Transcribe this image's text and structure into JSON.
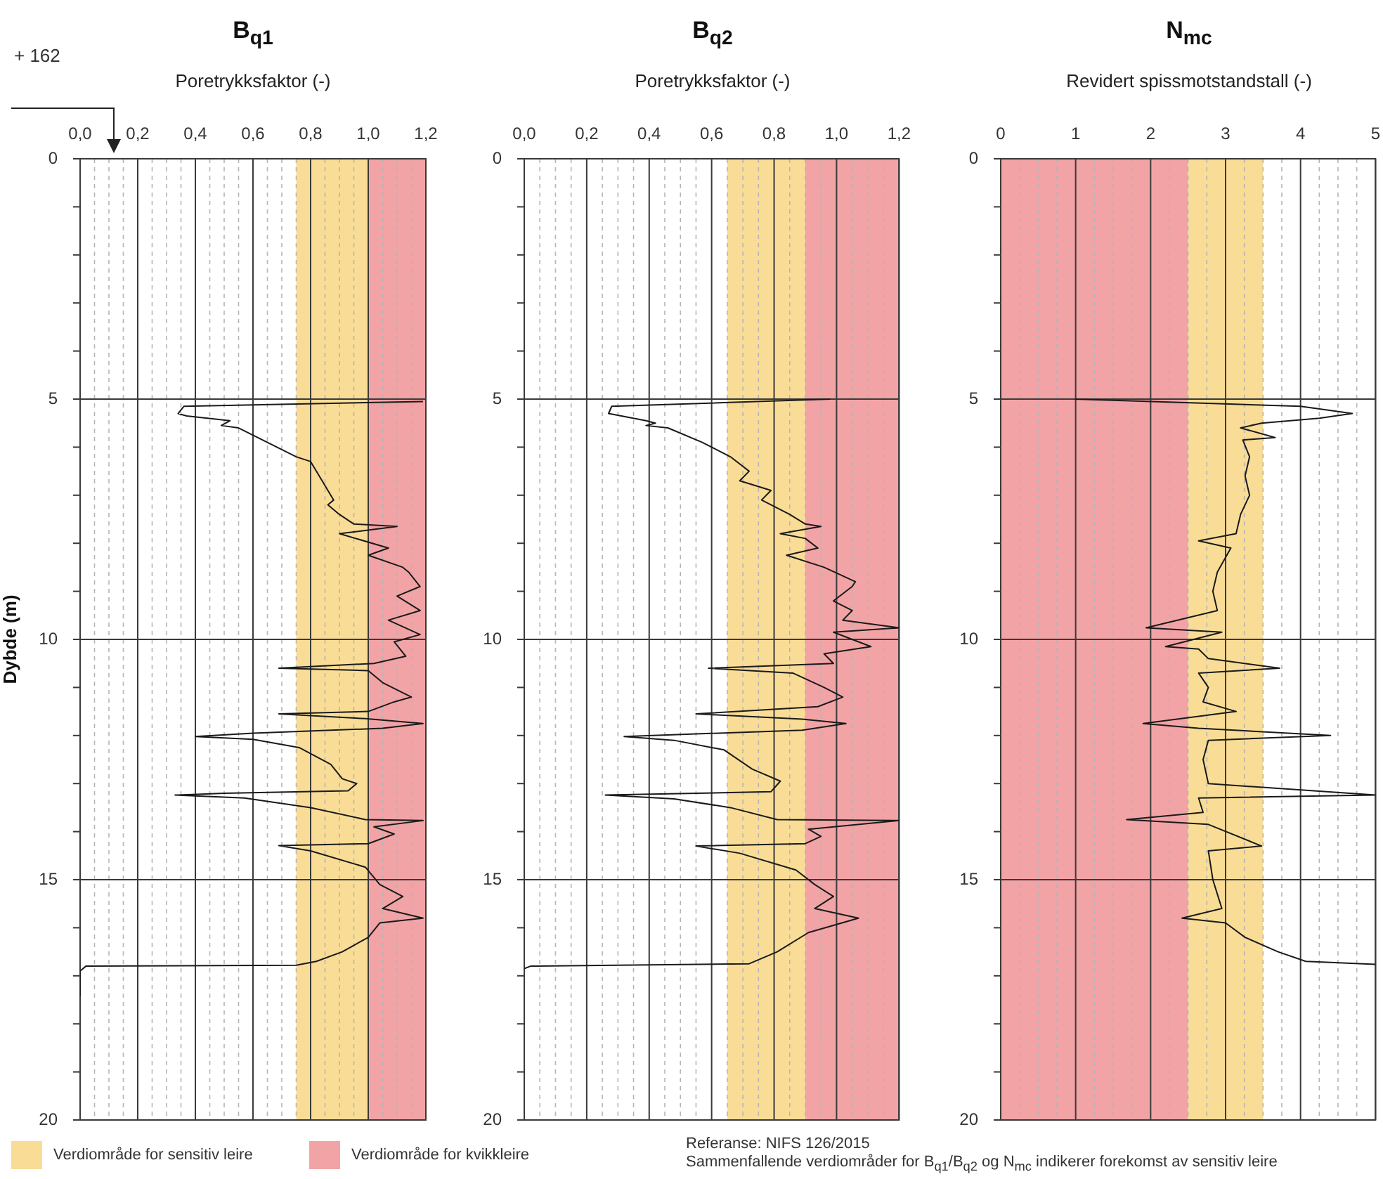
{
  "chart_data": [
    {
      "type": "line",
      "title": "B$_{q1}$",
      "xlabel": "Poretrykksfaktor (-)",
      "ylabel": "Dybde (m)",
      "grid": true,
      "marker": "none",
      "xlim": [
        0,
        1.2
      ],
      "ylim": [
        20,
        0
      ],
      "xticks": [
        {
          "value": 0,
          "label": "0,0"
        },
        {
          "value": 0.05,
          "label": null
        },
        {
          "value": 0.1,
          "label": null
        },
        {
          "value": 0.15,
          "label": null
        },
        {
          "value": 0.2,
          "label": "0,2"
        },
        {
          "value": 0.25,
          "label": null
        },
        {
          "value": 0.3,
          "label": null
        },
        {
          "value": 0.35,
          "label": null
        },
        {
          "value": 0.4,
          "label": "0,4"
        },
        {
          "value": 0.45,
          "label": null
        },
        {
          "value": 0.5,
          "label": null
        },
        {
          "value": 0.55,
          "label": null
        },
        {
          "value": 0.6,
          "label": "0,6"
        },
        {
          "value": 0.65,
          "label": null
        },
        {
          "value": 0.7,
          "label": null
        },
        {
          "value": 0.75,
          "label": null
        },
        {
          "value": 0.8,
          "label": "0,8"
        },
        {
          "value": 0.85,
          "label": null
        },
        {
          "value": 0.9,
          "label": null
        },
        {
          "value": 0.95,
          "label": null
        },
        {
          "value": 1,
          "label": "1,0"
        },
        {
          "value": 1.05,
          "label": null
        },
        {
          "value": 1.1,
          "label": null
        },
        {
          "value": 1.15,
          "label": null
        },
        {
          "value": 1.2,
          "label": "1,2"
        }
      ],
      "yticks": [
        0,
        {
          "value": 1,
          "label": null
        },
        {
          "value": 2,
          "label": null
        },
        {
          "value": 3,
          "label": null
        },
        {
          "value": 4,
          "label": null
        },
        5,
        {
          "value": 6,
          "label": null
        },
        {
          "value": 7,
          "label": null
        },
        {
          "value": 8,
          "label": null
        },
        {
          "value": 9,
          "label": null
        },
        10,
        {
          "value": 11,
          "label": null
        },
        {
          "value": 12,
          "label": null
        },
        {
          "value": 13,
          "label": null
        },
        {
          "value": 14,
          "label": null
        },
        15,
        {
          "value": 16,
          "label": null
        },
        {
          "value": 17,
          "label": null
        },
        {
          "value": 18,
          "label": null
        },
        {
          "value": 19,
          "label": null
        },
        20
      ],
      "bands": [
        {
          "axis": "x",
          "from": 0.75,
          "to": 1.0,
          "label": "Verdiområde for sensitiv leire",
          "color": "#f9dd96"
        },
        {
          "axis": "x",
          "from": 1.0,
          "to": 1.2,
          "label": "Verdiområde for kvikkleire",
          "color": "#f2a3a6"
        }
      ],
      "annotations": [
        "+ 162"
      ],
      "legend": "bottom left",
      "series": [
        {
          "color": "#1a1a1a",
          "x": [
            1.19,
            0.36,
            0.34,
            0.37,
            0.52,
            0.49,
            0.55,
            0.75,
            0.8,
            0.84,
            0.88,
            0.86,
            0.9,
            0.95,
            1.1,
            0.9,
            1.07,
            1.0,
            1.12,
            1.14,
            1.18,
            1.1,
            1.18,
            1.07,
            1.18,
            1.09,
            1.13,
            1.02,
            0.69,
            1.0,
            1.05,
            1.15,
            1.09,
            1.0,
            0.69,
            0.99,
            1.19,
            1.05,
            0.6,
            0.4,
            0.6,
            0.76,
            0.87,
            0.91,
            0.96,
            0.93,
            0.5,
            0.33,
            0.57,
            0.8,
            0.99,
            1.19,
            1.02,
            1.09,
            1.0,
            0.69,
            0.8,
            0.99,
            1.04,
            1.12,
            1.05,
            1.19,
            1.04,
            1.0,
            0.91,
            0.82,
            0.75,
            0.02,
            0.0,
            0.0
          ],
          "values": [
            5.05,
            5.15,
            5.3,
            5.35,
            5.45,
            5.55,
            5.6,
            6.2,
            6.3,
            6.7,
            7.1,
            7.2,
            7.4,
            7.6,
            7.65,
            7.8,
            8.1,
            8.25,
            8.5,
            8.6,
            8.9,
            9.1,
            9.4,
            9.6,
            9.9,
            10.05,
            10.35,
            10.5,
            10.6,
            10.65,
            10.9,
            11.2,
            11.3,
            11.5,
            11.55,
            11.65,
            11.75,
            11.85,
            11.95,
            12.02,
            12.08,
            12.25,
            12.6,
            12.9,
            13.0,
            13.15,
            13.2,
            13.24,
            13.3,
            13.5,
            13.75,
            13.77,
            13.9,
            14.05,
            14.25,
            14.29,
            14.4,
            14.74,
            15.1,
            15.35,
            15.6,
            15.8,
            15.9,
            16.2,
            16.5,
            16.7,
            16.78,
            16.8,
            16.9,
            17.4
          ]
        }
      ]
    },
    {
      "type": "line",
      "title": "B$_{q2}$",
      "xlabel": "Poretrykksfaktor (-)",
      "grid": true,
      "marker": "none",
      "xlim": [
        0,
        1.2
      ],
      "ylim": [
        20,
        0
      ],
      "xticks": [
        {
          "value": 0,
          "label": "0,0"
        },
        {
          "value": 0.05,
          "label": null
        },
        {
          "value": 0.1,
          "label": null
        },
        {
          "value": 0.15,
          "label": null
        },
        {
          "value": 0.2,
          "label": "0,2"
        },
        {
          "value": 0.25,
          "label": null
        },
        {
          "value": 0.3,
          "label": null
        },
        {
          "value": 0.35,
          "label": null
        },
        {
          "value": 0.4,
          "label": "0,4"
        },
        {
          "value": 0.45,
          "label": null
        },
        {
          "value": 0.5,
          "label": null
        },
        {
          "value": 0.55,
          "label": null
        },
        {
          "value": 0.6,
          "label": "0,6"
        },
        {
          "value": 0.65,
          "label": null
        },
        {
          "value": 0.7,
          "label": null
        },
        {
          "value": 0.75,
          "label": null
        },
        {
          "value": 0.8,
          "label": "0,8"
        },
        {
          "value": 0.85,
          "label": null
        },
        {
          "value": 0.9,
          "label": null
        },
        {
          "value": 0.95,
          "label": null
        },
        {
          "value": 1,
          "label": "1,0"
        },
        {
          "value": 1.05,
          "label": null
        },
        {
          "value": 1.1,
          "label": null
        },
        {
          "value": 1.15,
          "label": null
        },
        {
          "value": 1.2,
          "label": "1,2"
        }
      ],
      "yticks": [
        0,
        {
          "value": 1,
          "label": null
        },
        {
          "value": 2,
          "label": null
        },
        {
          "value": 3,
          "label": null
        },
        {
          "value": 4,
          "label": null
        },
        5,
        {
          "value": 6,
          "label": null
        },
        {
          "value": 7,
          "label": null
        },
        {
          "value": 8,
          "label": null
        },
        {
          "value": 9,
          "label": null
        },
        10,
        {
          "value": 11,
          "label": null
        },
        {
          "value": 12,
          "label": null
        },
        {
          "value": 13,
          "label": null
        },
        {
          "value": 14,
          "label": null
        },
        15,
        {
          "value": 16,
          "label": null
        },
        {
          "value": 17,
          "label": null
        },
        {
          "value": 18,
          "label": null
        },
        {
          "value": 19,
          "label": null
        },
        20
      ],
      "bands": [
        {
          "axis": "x",
          "from": 0.65,
          "to": 0.9,
          "color": "#f9dd96"
        },
        {
          "axis": "x",
          "from": 0.9,
          "to": 1.2,
          "color": "#f2a3a6"
        }
      ],
      "series": [
        {
          "color": "#1a1a1a",
          "x": [
            0.98,
            0.28,
            0.27,
            0.39,
            0.42,
            0.39,
            0.46,
            0.57,
            0.66,
            0.72,
            0.69,
            0.79,
            0.76,
            0.85,
            0.9,
            0.95,
            0.82,
            0.9,
            0.94,
            0.84,
            0.96,
            1.06,
            1.05,
            0.99,
            1.05,
            1.02,
            1.2,
            0.99,
            1.11,
            0.96,
            0.99,
            0.59,
            0.86,
            0.96,
            1.02,
            0.94,
            0.55,
            0.89,
            1.03,
            0.89,
            0.32,
            0.48,
            0.64,
            0.73,
            0.82,
            0.79,
            0.26,
            0.48,
            0.66,
            0.81,
            1.2,
            0.91,
            0.95,
            0.9,
            0.55,
            0.69,
            0.87,
            0.93,
            0.99,
            0.93,
            1.07,
            0.91,
            0.81,
            0.72,
            0.02,
            0.0
          ],
          "values": [
            5.0,
            5.15,
            5.3,
            5.45,
            5.5,
            5.55,
            5.6,
            5.9,
            6.2,
            6.5,
            6.7,
            6.9,
            7.1,
            7.4,
            7.6,
            7.65,
            7.8,
            7.9,
            8.1,
            8.25,
            8.5,
            8.8,
            8.9,
            9.2,
            9.4,
            9.6,
            9.76,
            9.85,
            10.15,
            10.3,
            10.5,
            10.6,
            10.7,
            11.0,
            11.2,
            11.4,
            11.55,
            11.66,
            11.75,
            11.89,
            12.02,
            12.1,
            12.3,
            12.7,
            12.95,
            13.17,
            13.24,
            13.32,
            13.5,
            13.75,
            13.77,
            13.95,
            14.1,
            14.25,
            14.3,
            14.45,
            14.8,
            15.1,
            15.35,
            15.6,
            15.8,
            16.1,
            16.5,
            16.75,
            16.8,
            16.85
          ]
        }
      ]
    },
    {
      "type": "line",
      "title": "N$_{mc}$",
      "xlabel": "Revidert spissmotstandstall (-)",
      "grid": true,
      "marker": "none",
      "xlim": [
        0,
        5
      ],
      "ylim": [
        20,
        0
      ],
      "xticks": [
        0,
        {
          "value": 0.25,
          "label": null
        },
        {
          "value": 0.5,
          "label": null
        },
        {
          "value": 0.75,
          "label": null
        },
        1,
        {
          "value": 1.25,
          "label": null
        },
        {
          "value": 1.5,
          "label": null
        },
        {
          "value": 1.75,
          "label": null
        },
        2,
        {
          "value": 2.25,
          "label": null
        },
        {
          "value": 2.5,
          "label": null
        },
        {
          "value": 2.75,
          "label": null
        },
        3,
        {
          "value": 3.25,
          "label": null
        },
        {
          "value": 3.5,
          "label": null
        },
        {
          "value": 3.75,
          "label": null
        },
        4,
        {
          "value": 4.25,
          "label": null
        },
        {
          "value": 4.5,
          "label": null
        },
        {
          "value": 4.75,
          "label": null
        },
        5
      ],
      "yticks": [
        0,
        {
          "value": 1,
          "label": null
        },
        {
          "value": 2,
          "label": null
        },
        {
          "value": 3,
          "label": null
        },
        {
          "value": 4,
          "label": null
        },
        5,
        {
          "value": 6,
          "label": null
        },
        {
          "value": 7,
          "label": null
        },
        {
          "value": 8,
          "label": null
        },
        {
          "value": 9,
          "label": null
        },
        10,
        {
          "value": 11,
          "label": null
        },
        {
          "value": 12,
          "label": null
        },
        {
          "value": 13,
          "label": null
        },
        {
          "value": 14,
          "label": null
        },
        15,
        {
          "value": 16,
          "label": null
        },
        {
          "value": 17,
          "label": null
        },
        {
          "value": 18,
          "label": null
        },
        {
          "value": 19,
          "label": null
        },
        20
      ],
      "bands": [
        {
          "axis": "x",
          "from": 0,
          "to": 2.5,
          "color": "#f2a3a6"
        },
        {
          "axis": "x",
          "from": 2.5,
          "to": 3.5,
          "color": "#f9dd96"
        }
      ],
      "annotations": [
        "Referanse: NIFS 126/2015",
        "Sammenfallende verdiområder for B$_{q1}$/B$_{q2}$ og N$_{mc}$ indikerer forekomst av sensitiv leire"
      ],
      "series": [
        {
          "color": "#1a1a1a",
          "x": [
            0.99,
            4.0,
            4.69,
            4.25,
            3.48,
            3.2,
            3.66,
            3.23,
            3.32,
            3.26,
            3.32,
            3.2,
            3.14,
            2.64,
            3.07,
            2.89,
            2.83,
            2.89,
            1.94,
            2.95,
            2.2,
            2.64,
            2.77,
            3.72,
            2.64,
            2.77,
            2.7,
            3.14,
            1.9,
            2.64,
            4.4,
            2.77,
            2.7,
            2.77,
            5.0,
            2.64,
            2.7,
            1.68,
            2.77,
            3.48,
            2.77,
            2.83,
            2.95,
            2.42,
            3.0,
            3.26,
            3.7,
            4.07,
            5.0
          ],
          "values": [
            5.0,
            5.15,
            5.3,
            5.4,
            5.5,
            5.6,
            5.8,
            5.85,
            6.2,
            6.6,
            7.0,
            7.4,
            7.8,
            7.95,
            8.1,
            8.6,
            9.0,
            9.4,
            9.76,
            9.85,
            10.15,
            10.2,
            10.4,
            10.6,
            10.7,
            11.0,
            11.3,
            11.5,
            11.75,
            11.85,
            12.0,
            12.1,
            12.5,
            13.0,
            13.24,
            13.3,
            13.6,
            13.75,
            13.85,
            14.3,
            14.4,
            15.0,
            15.6,
            15.8,
            15.9,
            16.2,
            16.5,
            16.7,
            16.76
          ]
        }
      ]
    }
  ]
}
